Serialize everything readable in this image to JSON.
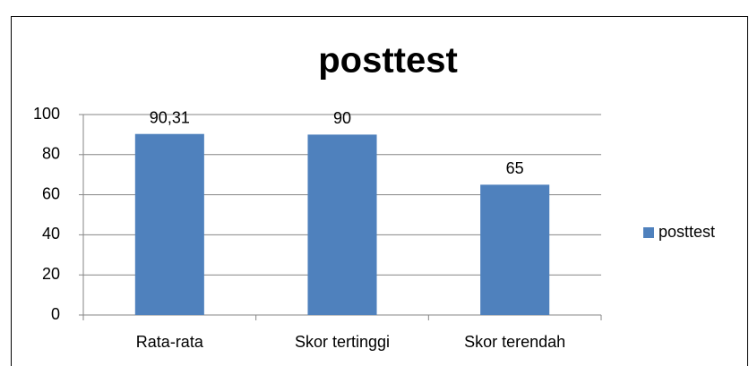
{
  "chart_data": {
    "type": "bar",
    "title": "posttest",
    "categories": [
      "Rata-rata",
      "Skor tertinggi",
      "Skor terendah"
    ],
    "series": [
      {
        "name": "posttest",
        "color": "#4f81bd",
        "values": [
          90.31,
          90,
          65
        ],
        "value_labels": [
          "90,31",
          "90",
          "65"
        ]
      }
    ],
    "ylim": [
      0,
      100
    ],
    "yticks": [
      0,
      20,
      40,
      60,
      80,
      100
    ],
    "grid": true,
    "legend": "right"
  }
}
